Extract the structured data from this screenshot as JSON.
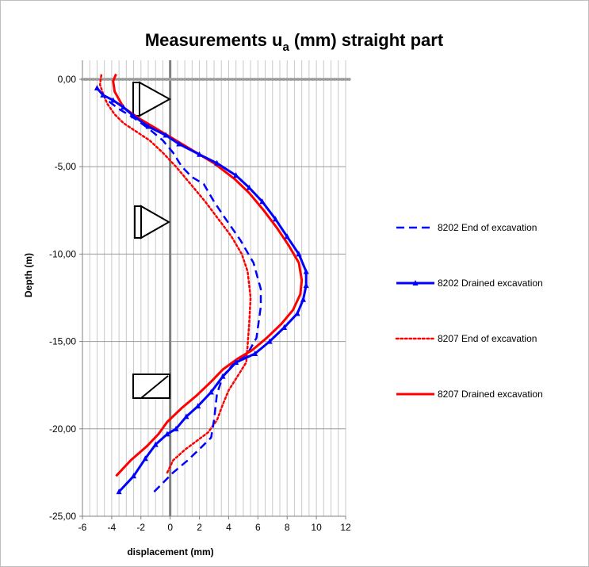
{
  "chart_data": {
    "type": "line",
    "title": "Measurements u",
    "title_subscript": "a",
    "title_suffix": " (mm) straight part",
    "xlabel": "displacement (mm)",
    "ylabel": "Depth (m)",
    "xlim": [
      -6,
      12
    ],
    "ylim": [
      -25,
      0
    ],
    "x_ticks": [
      "-6",
      "-4",
      "-2",
      "0",
      "2",
      "4",
      "6",
      "8",
      "10",
      "12"
    ],
    "y_ticks": [
      "0,00",
      "-5,00",
      "-10,00",
      "-15,00",
      "-20,00",
      "-25,00"
    ],
    "grid": true,
    "legend_position": "right",
    "series": [
      {
        "name": "8202 End of excavation",
        "color": "#0000ff",
        "style": "dashed",
        "marker": "none",
        "points": [
          [
            -1.1,
            -23.6
          ],
          [
            -0.5,
            -23.1
          ],
          [
            0.2,
            -22.5
          ],
          [
            1.2,
            -21.8
          ],
          [
            2.2,
            -21.0
          ],
          [
            2.8,
            -20.5
          ],
          [
            3.0,
            -19.5
          ],
          [
            3.2,
            -18.0
          ],
          [
            3.6,
            -17.0
          ],
          [
            4.3,
            -16.3
          ],
          [
            5.3,
            -15.7
          ],
          [
            5.9,
            -14.8
          ],
          [
            6.2,
            -13.0
          ],
          [
            6.2,
            -12.0
          ],
          [
            5.7,
            -10.5
          ],
          [
            4.8,
            -9.2
          ],
          [
            3.8,
            -8.0
          ],
          [
            3.0,
            -7.0
          ],
          [
            2.3,
            -6.0
          ],
          [
            1.5,
            -5.6
          ],
          [
            0.8,
            -5.0
          ],
          [
            0.2,
            -4.2
          ],
          [
            -0.5,
            -3.5
          ],
          [
            -1.5,
            -2.8
          ],
          [
            -2.5,
            -2.2
          ],
          [
            -3.5,
            -1.7
          ],
          [
            -4.3,
            -1.2
          ],
          [
            -5.0,
            -0.5
          ]
        ]
      },
      {
        "name": "8202 Drained excavation",
        "color": "#0000ff",
        "style": "solid",
        "marker": "triangle",
        "points": [
          [
            -3.5,
            -23.6
          ],
          [
            -2.5,
            -22.7
          ],
          [
            -1.7,
            -21.7
          ],
          [
            -1.0,
            -20.9
          ],
          [
            -0.2,
            -20.3
          ],
          [
            0.4,
            -20.0
          ],
          [
            1.1,
            -19.3
          ],
          [
            1.9,
            -18.7
          ],
          [
            2.8,
            -17.9
          ],
          [
            3.6,
            -17.0
          ],
          [
            4.5,
            -16.2
          ],
          [
            5.8,
            -15.7
          ],
          [
            6.8,
            -15.0
          ],
          [
            7.8,
            -14.2
          ],
          [
            8.7,
            -13.4
          ],
          [
            9.1,
            -12.6
          ],
          [
            9.3,
            -11.8
          ],
          [
            9.3,
            -11.0
          ],
          [
            8.8,
            -10.0
          ],
          [
            8.0,
            -9.0
          ],
          [
            7.2,
            -8.0
          ],
          [
            6.3,
            -7.0
          ],
          [
            5.4,
            -6.2
          ],
          [
            4.5,
            -5.5
          ],
          [
            3.2,
            -4.8
          ],
          [
            2.0,
            -4.3
          ],
          [
            0.6,
            -3.7
          ],
          [
            -0.3,
            -3.2
          ],
          [
            -1.5,
            -2.7
          ],
          [
            -2.5,
            -2.1
          ],
          [
            -3.2,
            -1.6
          ],
          [
            -3.9,
            -1.2
          ],
          [
            -4.6,
            -0.9
          ],
          [
            -5.0,
            -0.5
          ]
        ]
      },
      {
        "name": "8207 End of excavation",
        "color": "#ff0000",
        "style": "dotted",
        "marker": "none",
        "points": [
          [
            -0.2,
            -22.5
          ],
          [
            0.2,
            -21.8
          ],
          [
            1.0,
            -21.2
          ],
          [
            1.8,
            -20.7
          ],
          [
            2.6,
            -20.2
          ],
          [
            3.2,
            -19.5
          ],
          [
            3.6,
            -18.6
          ],
          [
            4.0,
            -17.8
          ],
          [
            4.6,
            -17.0
          ],
          [
            5.2,
            -16.2
          ],
          [
            5.3,
            -15.2
          ],
          [
            5.4,
            -14.0
          ],
          [
            5.5,
            -12.5
          ],
          [
            5.3,
            -11.0
          ],
          [
            4.9,
            -10.0
          ],
          [
            4.2,
            -9.0
          ],
          [
            3.3,
            -8.0
          ],
          [
            2.4,
            -7.0
          ],
          [
            1.4,
            -6.0
          ],
          [
            0.4,
            -5.0
          ],
          [
            -0.5,
            -4.2
          ],
          [
            -1.4,
            -3.5
          ],
          [
            -2.3,
            -3.0
          ],
          [
            -3.2,
            -2.5
          ],
          [
            -3.8,
            -2.0
          ],
          [
            -4.3,
            -1.4
          ],
          [
            -4.6,
            -0.8
          ],
          [
            -4.8,
            -0.3
          ],
          [
            -4.7,
            0.3
          ]
        ]
      },
      {
        "name": "8207 Drained excavation",
        "color": "#ff0000",
        "style": "solid",
        "marker": "none",
        "points": [
          [
            -3.7,
            -22.7
          ],
          [
            -2.7,
            -21.8
          ],
          [
            -1.6,
            -21.0
          ],
          [
            -0.8,
            -20.3
          ],
          [
            -0.2,
            -19.6
          ],
          [
            0.8,
            -18.8
          ],
          [
            1.8,
            -18.1
          ],
          [
            2.8,
            -17.3
          ],
          [
            3.6,
            -16.6
          ],
          [
            4.6,
            -16.0
          ],
          [
            5.6,
            -15.5
          ],
          [
            6.6,
            -14.8
          ],
          [
            7.6,
            -14.0
          ],
          [
            8.4,
            -13.2
          ],
          [
            8.9,
            -12.3
          ],
          [
            9.0,
            -11.5
          ],
          [
            8.8,
            -10.5
          ],
          [
            8.1,
            -9.5
          ],
          [
            7.3,
            -8.5
          ],
          [
            6.4,
            -7.5
          ],
          [
            5.4,
            -6.5
          ],
          [
            4.4,
            -5.7
          ],
          [
            3.0,
            -4.8
          ],
          [
            1.6,
            -4.1
          ],
          [
            0.2,
            -3.4
          ],
          [
            -1.0,
            -2.8
          ],
          [
            -2.2,
            -2.2
          ],
          [
            -3.2,
            -1.6
          ],
          [
            -3.8,
            -0.7
          ],
          [
            -3.9,
            -0.1
          ],
          [
            -3.7,
            0.3
          ]
        ]
      }
    ]
  }
}
